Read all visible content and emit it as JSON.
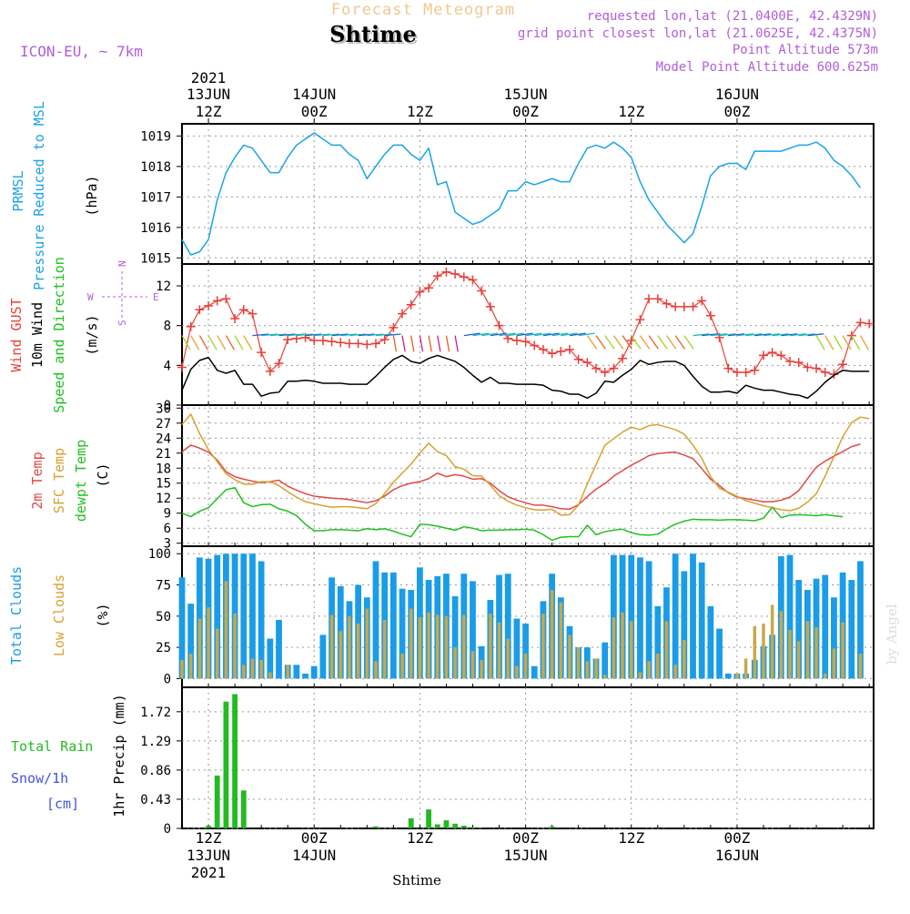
{
  "header": {
    "title": "Forecast Meteogram",
    "location": "Shtime",
    "model": "ICON-EU, ~ 7km",
    "requested": "requested lon,lat (21.0400E, 42.4329N)",
    "gridpoint": "grid point closest lon,lat (21.0625E, 42.4375N)",
    "point_alt": "Point Altitude 573m",
    "model_alt": "Model Point Altitude 600.625m",
    "watermark": "by Angel",
    "footer": "Shtime"
  },
  "colors": {
    "pressure": "#1aa3e8",
    "gust": "#e8403a",
    "wind": "#000000",
    "temp": "#e04848",
    "sfc": "#d9a030",
    "dewpt": "#20c020",
    "total_cloud": "#1a9ce8",
    "low_cloud": "#c8a84a",
    "rain": "#22bb22",
    "snow": "#4455dd",
    "meta": "#b060d8",
    "title": "#f0c890"
  },
  "time_axis": {
    "top_ticks": [
      {
        "t": 3,
        "line1": "2021",
        "line2": "13JUN",
        "line3": "12Z"
      },
      {
        "t": 15,
        "line1": "",
        "line2": "14JUN",
        "line3": "00Z"
      },
      {
        "t": 27,
        "line1": "",
        "line2": "",
        "line3": "12Z"
      },
      {
        "t": 39,
        "line1": "",
        "line2": "15JUN",
        "line3": "00Z"
      },
      {
        "t": 51,
        "line1": "",
        "line2": "",
        "line3": "12Z"
      },
      {
        "t": 63,
        "line1": "",
        "line2": "16JUN",
        "line3": "00Z"
      }
    ],
    "bottom_ticks": [
      {
        "t": 3,
        "line1": "12Z",
        "line2": "13JUN",
        "line3": "2021"
      },
      {
        "t": 15,
        "line1": "00Z",
        "line2": "14JUN",
        "line3": ""
      },
      {
        "t": 27,
        "line1": "12Z",
        "line2": "",
        "line3": ""
      },
      {
        "t": 39,
        "line1": "00Z",
        "line2": "15JUN",
        "line3": ""
      },
      {
        "t": 51,
        "line1": "12Z",
        "line2": "",
        "line3": ""
      },
      {
        "t": 63,
        "line1": "00Z",
        "line2": "16JUN",
        "line3": ""
      }
    ]
  },
  "chart_data": [
    {
      "type": "line",
      "title": "PRMSL Pressure Reduced to MSL",
      "ylabel": "(hPa)",
      "label_lines": [
        "PRMSL",
        "Pressure Reduced to MSL"
      ],
      "yticks": [
        1015,
        1016,
        1017,
        1018,
        1019
      ],
      "ylim": [
        1014.8,
        1019.4
      ],
      "x_start_hour": 0,
      "x_step_hours": 1,
      "series": [
        {
          "name": "PRMSL",
          "values": [
            1015.6,
            1015.1,
            1015.2,
            1015.6,
            1016.9,
            1017.8,
            1018.3,
            1018.7,
            1018.6,
            1018.2,
            1017.8,
            1017.8,
            1018.3,
            1018.7,
            1018.9,
            1019.1,
            1018.9,
            1018.7,
            1018.7,
            1018.4,
            1018.2,
            1017.6,
            1018.0,
            1018.4,
            1018.7,
            1018.7,
            1018.4,
            1018.2,
            1018.6,
            1017.4,
            1017.5,
            1016.5,
            1016.3,
            1016.1,
            1016.2,
            1016.4,
            1016.6,
            1017.2,
            1017.2,
            1017.5,
            1017.4,
            1017.5,
            1017.6,
            1017.5,
            1017.5,
            1018.1,
            1018.6,
            1018.7,
            1018.6,
            1018.8,
            1018.6,
            1018.3,
            1017.5,
            1016.9,
            1016.5,
            1016.1,
            1015.8,
            1015.5,
            1015.8,
            1016.7,
            1017.7,
            1018.0,
            1018.1,
            1018.1,
            1017.9,
            1018.5,
            1018.5,
            1018.5,
            1018.5,
            1018.6,
            1018.7,
            1018.7,
            1018.8,
            1018.6,
            1018.2,
            1018.0,
            1017.7,
            1017.3
          ]
        }
      ]
    },
    {
      "type": "line",
      "title": "Wind GUST / 10m Wind Speed and Direction",
      "ylabel": "(m/s)",
      "yticks": [
        0,
        4,
        8,
        12
      ],
      "ylim": [
        0,
        14.2
      ],
      "compass": {
        "w": "W",
        "e": "E",
        "n": "N",
        "s": "S"
      },
      "series": [
        {
          "name": "Wind GUST",
          "values": [
            3.8,
            7.9,
            9.6,
            10.0,
            10.5,
            10.7,
            8.7,
            9.6,
            9.2,
            5.3,
            3.4,
            4.2,
            6.6,
            6.7,
            6.8,
            6.5,
            6.5,
            6.4,
            6.3,
            6.2,
            6.2,
            6.1,
            6.2,
            6.6,
            7.8,
            9.2,
            10.1,
            11.4,
            11.8,
            13.0,
            13.4,
            13.2,
            12.9,
            12.6,
            11.5,
            9.9,
            8.0,
            6.7,
            6.5,
            6.4,
            6.0,
            5.6,
            5.2,
            5.4,
            5.6,
            4.6,
            4.3,
            3.7,
            3.3,
            3.7,
            4.7,
            6.5,
            8.6,
            10.7,
            10.7,
            10.2,
            9.9,
            9.9,
            9.9,
            10.5,
            9.0,
            6.8,
            3.7,
            3.3,
            3.3,
            3.5,
            5.0,
            5.3,
            5.0,
            4.4,
            4.3,
            3.8,
            3.7,
            3.3,
            3.1,
            4.1,
            7.0,
            8.3,
            8.2
          ]
        },
        {
          "name": "10m Wind",
          "values": [
            1.5,
            3.6,
            4.5,
            4.8,
            3.5,
            3.2,
            3.5,
            2.1,
            2.1,
            0.9,
            1.2,
            1.3,
            2.4,
            2.4,
            2.5,
            2.4,
            2.2,
            2.2,
            2.2,
            2.1,
            2.1,
            2.1,
            2.9,
            3.8,
            4.6,
            5.0,
            4.4,
            4.2,
            4.7,
            5.0,
            4.7,
            4.4,
            3.8,
            3.0,
            2.3,
            2.8,
            2.2,
            2.2,
            2.1,
            2.1,
            2.1,
            2.0,
            1.5,
            1.4,
            1.1,
            1.1,
            0.7,
            1.2,
            2.4,
            2.3,
            3.0,
            3.6,
            4.5,
            4.1,
            4.3,
            4.4,
            4.4,
            4.0,
            2.9,
            1.9,
            1.3,
            1.3,
            1.4,
            1.2,
            2.0,
            1.7,
            1.5,
            1.5,
            1.3,
            1.1,
            1.0,
            0.7,
            1.4,
            2.3,
            3.0,
            3.5,
            3.4,
            3.4,
            3.4
          ]
        }
      ]
    },
    {
      "type": "line",
      "title": "2m Temp / SFC Temp / dewpt Temp",
      "ylabel": "(C)",
      "yticks": [
        3,
        6,
        9,
        12,
        15,
        18,
        21,
        24,
        27,
        30
      ],
      "ylim": [
        2.4,
        30.6
      ],
      "series": [
        {
          "name": "2m Temp",
          "values": [
            21.3,
            22.6,
            22.0,
            21.2,
            19.6,
            17.3,
            16.3,
            15.8,
            15.4,
            15.1,
            15.3,
            15.6,
            14.4,
            13.6,
            12.9,
            12.4,
            12.2,
            12.0,
            11.9,
            11.7,
            11.4,
            11.1,
            11.5,
            12.4,
            13.7,
            14.5,
            15.0,
            15.3,
            15.9,
            17.0,
            16.3,
            16.7,
            16.4,
            15.8,
            15.9,
            15.0,
            13.5,
            12.3,
            11.6,
            11.1,
            10.6,
            10.6,
            10.3,
            9.9,
            9.8,
            10.7,
            12.3,
            13.8,
            14.9,
            16.4,
            17.5,
            18.6,
            19.5,
            20.5,
            20.9,
            21.1,
            21.2,
            20.6,
            19.9,
            17.9,
            15.8,
            14.5,
            13.1,
            12.2,
            11.9,
            11.6,
            11.3,
            11.3,
            11.6,
            12.2,
            13.5,
            15.9,
            18.2,
            19.4,
            20.4,
            21.3,
            22.3,
            22.8
          ]
        },
        {
          "name": "SFC Temp",
          "values": [
            26.7,
            28.8,
            24.9,
            21.7,
            19.3,
            16.9,
            15.7,
            14.8,
            14.8,
            15.3,
            15.3,
            14.5,
            13.3,
            12.2,
            11.3,
            10.9,
            10.5,
            10.2,
            10.3,
            10.3,
            10.1,
            9.9,
            10.9,
            12.9,
            15.2,
            17.0,
            18.8,
            21.0,
            23.0,
            21.3,
            20.5,
            18.3,
            17.8,
            16.5,
            16.4,
            14.6,
            12.5,
            11.4,
            10.6,
            10.1,
            9.7,
            9.6,
            9.8,
            8.6,
            8.7,
            10.6,
            14.8,
            18.7,
            22.6,
            23.9,
            25.2,
            26.2,
            25.7,
            26.5,
            26.7,
            26.2,
            25.7,
            24.8,
            22.6,
            20.0,
            16.3,
            14.0,
            13.2,
            12.4,
            11.5,
            11.0,
            10.5,
            10.1,
            9.7,
            9.5,
            10.0,
            11.2,
            12.9,
            16.4,
            20.3,
            24.3,
            27.1,
            28.2,
            27.9
          ]
        },
        {
          "name": "dewpt Temp",
          "values": [
            9.0,
            8.3,
            9.4,
            10.1,
            11.9,
            13.7,
            14.1,
            11.1,
            10.3,
            10.7,
            10.8,
            9.9,
            9.4,
            8.5,
            6.8,
            5.5,
            5.5,
            5.7,
            5.7,
            5.6,
            5.5,
            5.9,
            5.7,
            5.9,
            5.4,
            4.8,
            4.3,
            6.8,
            6.7,
            6.4,
            6.0,
            5.6,
            6.3,
            6.0,
            5.5,
            5.6,
            5.6,
            5.7,
            5.7,
            5.8,
            5.6,
            4.7,
            3.6,
            4.2,
            4.3,
            4.3,
            6.6,
            4.7,
            5.3,
            5.6,
            5.8,
            5.1,
            4.7,
            4.6,
            4.8,
            5.9,
            6.8,
            7.4,
            7.8,
            7.7,
            7.7,
            7.6,
            7.7,
            7.7,
            7.6,
            7.5,
            8.0,
            10.2,
            8.1,
            8.6,
            8.7,
            8.6,
            8.5,
            8.7,
            8.5,
            8.3
          ]
        }
      ]
    },
    {
      "type": "bar",
      "title": "Total Clouds / Low Clouds",
      "ylabel": "(%)",
      "yticks": [
        0,
        25,
        50,
        75,
        100
      ],
      "ylim": [
        -7,
        106
      ],
      "series": [
        {
          "name": "Total Clouds",
          "values": [
            81,
            60,
            97,
            96,
            99,
            100,
            100,
            100,
            100,
            94,
            32,
            47,
            11,
            11,
            4,
            10,
            35,
            81,
            74,
            62,
            75,
            65,
            94,
            85,
            85,
            72,
            71,
            89,
            79,
            82,
            84,
            66,
            84,
            78,
            26,
            63,
            83,
            84,
            48,
            44,
            10,
            62,
            84,
            65,
            42,
            25,
            25,
            16,
            29,
            99,
            99,
            99,
            97,
            94,
            58,
            73,
            100,
            86,
            100,
            93,
            58,
            40,
            4,
            4,
            4,
            15,
            26,
            35,
            98,
            99,
            79,
            71,
            80,
            83,
            65,
            85,
            79,
            94
          ]
        },
        {
          "name": "Low Clouds",
          "values": [
            15,
            20,
            48,
            57,
            40,
            78,
            52,
            11,
            16,
            15,
            5,
            0,
            11,
            0,
            0,
            0,
            0,
            51,
            38,
            50,
            44,
            56,
            14,
            47,
            0,
            20,
            56,
            49,
            53,
            51,
            50,
            25,
            51,
            22,
            15,
            52,
            45,
            32,
            10,
            20,
            0,
            52,
            71,
            61,
            35,
            25,
            14,
            16,
            3,
            49,
            53,
            46,
            5,
            14,
            20,
            46,
            11,
            31,
            0,
            0,
            0,
            0,
            0,
            4,
            16,
            42,
            44,
            59,
            54,
            39,
            30,
            46,
            41,
            4,
            24,
            45,
            0,
            20
          ]
        }
      ]
    },
    {
      "type": "bar",
      "title": "1hr Precip (mm)",
      "ylabel": "1hr Precip (mm)",
      "yticks": [
        0,
        0.43,
        0.86,
        1.29,
        1.72
      ],
      "ylim": [
        0,
        2.08
      ],
      "label_lines": [
        "Total Rain",
        "Snow/1h",
        "[cm]"
      ],
      "series": [
        {
          "name": "Total Rain",
          "values": [
            0,
            0,
            0,
            0.04,
            0.78,
            1.87,
            1.98,
            0.56,
            0,
            0,
            0,
            0,
            0,
            0,
            0,
            0,
            0,
            0,
            0,
            0,
            0,
            0,
            0.03,
            0,
            0,
            0,
            0.15,
            0,
            0.28,
            0.06,
            0.12,
            0.07,
            0.04,
            0.02,
            0.01,
            0,
            0,
            0,
            0,
            0,
            0,
            0,
            0.03,
            0,
            0,
            0,
            0,
            0,
            0,
            0,
            0,
            0,
            0,
            0,
            0,
            0,
            0,
            0,
            0,
            0,
            0,
            0,
            0,
            0,
            0,
            0,
            0,
            0,
            0,
            0,
            0,
            0,
            0,
            0,
            0,
            0,
            0,
            0
          ]
        },
        {
          "name": "Snow/1h",
          "values": [
            0,
            0,
            0,
            0,
            0,
            0,
            0,
            0,
            0,
            0,
            0,
            0,
            0,
            0,
            0,
            0,
            0,
            0,
            0,
            0,
            0,
            0,
            0,
            0,
            0,
            0,
            0,
            0,
            0,
            0,
            0,
            0,
            0,
            0,
            0,
            0,
            0,
            0,
            0,
            0,
            0,
            0,
            0,
            0,
            0,
            0,
            0,
            0,
            0,
            0,
            0,
            0,
            0,
            0,
            0,
            0,
            0,
            0,
            0,
            0,
            0,
            0,
            0,
            0,
            0,
            0,
            0,
            0,
            0,
            0,
            0,
            0,
            0,
            0,
            0,
            0,
            0,
            0,
            0
          ]
        }
      ]
    }
  ],
  "side_labels": {
    "p1": [
      "PRMSL",
      "Pressure Reduced to MSL",
      "(hPa)"
    ],
    "p2": [
      "Wind GUST",
      "10m Wind",
      "Speed and Direction",
      "(m/s)"
    ],
    "p3": [
      "2m Temp",
      "SFC Temp",
      "dewpt Temp",
      "(C)"
    ],
    "p4": [
      "Total Clouds",
      "Low Clouds",
      "(%)"
    ],
    "p5_rain": "Total  Rain",
    "p5_snow": "Snow/1h",
    "p5_unit": "[cm]",
    "p5_axis": "1hr Precip (mm)"
  }
}
